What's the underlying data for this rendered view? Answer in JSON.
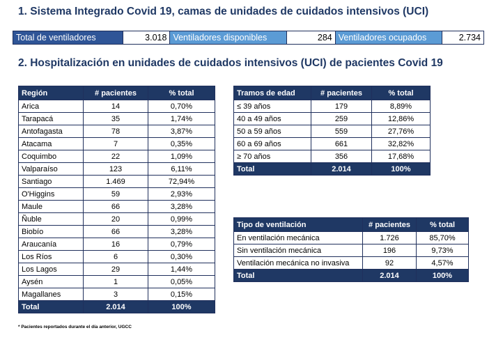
{
  "section1_title": "1. Sistema Integrado Covid 19, camas de unidades de cuidados intensivos (UCI)",
  "ventiladores": {
    "total_label": "Total de ventiladores",
    "total_value": "3.018",
    "disponibles_label": "Ventiladores disponibles",
    "disponibles_value": "284",
    "ocupados_label": "Ventiladores ocupados",
    "ocupados_value": "2.734"
  },
  "section2_title": "2. Hospitalización en unidades de cuidados intensivos (UCI) de pacientes Covid 19",
  "region_table": {
    "headers": [
      "Región",
      "# pacientes",
      "% total"
    ],
    "rows": [
      [
        "Arica",
        "14",
        "0,70%"
      ],
      [
        "Tarapacá",
        "35",
        "1,74%"
      ],
      [
        "Antofagasta",
        "78",
        "3,87%"
      ],
      [
        "Atacama",
        "7",
        "0,35%"
      ],
      [
        "Coquimbo",
        "22",
        "1,09%"
      ],
      [
        "Valparaíso",
        "123",
        "6,11%"
      ],
      [
        "Santiago",
        "1.469",
        "72,94%"
      ],
      [
        "O'Higgins",
        "59",
        "2,93%"
      ],
      [
        "Maule",
        "66",
        "3,28%"
      ],
      [
        "Ñuble",
        "20",
        "0,99%"
      ],
      [
        "Biobío",
        "66",
        "3,28%"
      ],
      [
        "Araucanía",
        "16",
        "0,79%"
      ],
      [
        "Los Ríos",
        "6",
        "0,30%"
      ],
      [
        "Los Lagos",
        "29",
        "1,44%"
      ],
      [
        "Aysén",
        "1",
        "0,05%"
      ],
      [
        "Magallanes",
        "3",
        "0,15%"
      ]
    ],
    "total": [
      "Total",
      "2.014",
      "100%"
    ]
  },
  "edad_table": {
    "headers": [
      "Tramos de edad",
      "# pacientes",
      "% total"
    ],
    "rows": [
      [
        "≤ 39 años",
        "179",
        "8,89%"
      ],
      [
        "40 a 49 años",
        "259",
        "12,86%"
      ],
      [
        "50 a 59 años",
        "559",
        "27,76%"
      ],
      [
        "60 a 69 años",
        "661",
        "32,82%"
      ],
      [
        "≥ 70 años",
        "356",
        "17,68%"
      ]
    ],
    "total": [
      "Total",
      "2.014",
      "100%"
    ]
  },
  "ventilacion_table": {
    "headers": [
      "Tipo de ventilación",
      "# pacientes",
      "% total"
    ],
    "rows": [
      [
        "En ventilación mecánica",
        "1.726",
        "85,70%"
      ],
      [
        "Sin ventilación mecánica",
        "196",
        "9,73%"
      ],
      [
        "Ventilación mecánica no invasiva",
        "92",
        "4,57%"
      ]
    ],
    "total": [
      "Total",
      "2.014",
      "100%"
    ]
  },
  "footnote": "* Pacientes reportados durante el día anterior, UGCC",
  "colors": {
    "title": "#1f3864",
    "header_bg": "#1f3864",
    "label_dark": "#2f5597",
    "label_light": "#5b9bd5"
  }
}
